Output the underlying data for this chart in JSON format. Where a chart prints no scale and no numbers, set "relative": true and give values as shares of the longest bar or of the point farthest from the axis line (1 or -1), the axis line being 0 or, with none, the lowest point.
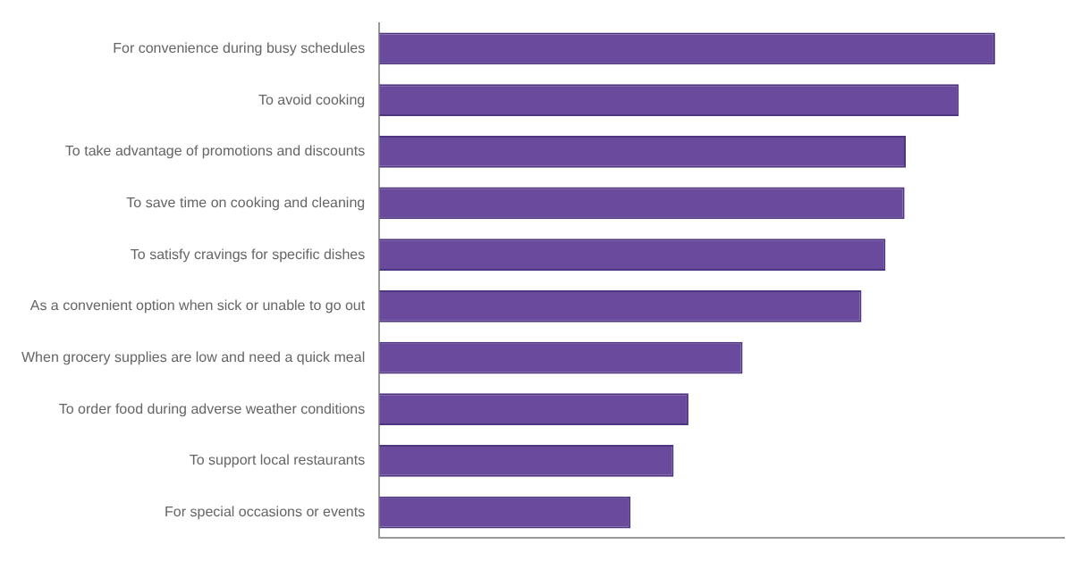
{
  "chart_data": {
    "type": "bar",
    "orientation": "horizontal",
    "relative": true,
    "categories": [
      "For convenience during busy schedules",
      "To avoid cooking",
      "To take advantage of promotions and discounts",
      "To save time on cooking and cleaning",
      "To satisfy cravings for specific dishes",
      "As a convenient option when sick or unable to go out",
      "When grocery supplies are low and need a quick meal",
      "To order food during adverse weather conditions",
      "To support local restaurants",
      "For special occasions or events"
    ],
    "values": [
      1,
      0.941,
      0.855,
      0.853,
      0.822,
      0.783,
      0.59,
      0.502,
      0.478,
      0.408
    ],
    "color": "#6a4a9c",
    "grid": false,
    "legend": false
  }
}
